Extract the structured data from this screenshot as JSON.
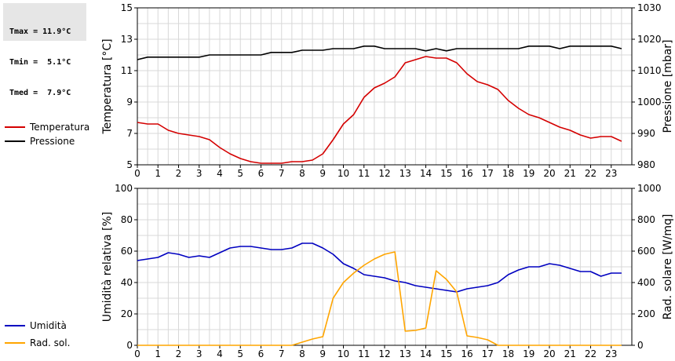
{
  "stats": {
    "tmax": "Tmax = 11.9°C",
    "tmin": "Tmin =  5.1°C",
    "tmed": "Tmed =  7.9°C"
  },
  "colors": {
    "temperature": "#d40000",
    "pressure": "#000000",
    "humidity": "#0000c0",
    "solar": "#ffa500",
    "grid": "#d8d8d8"
  },
  "chart_data": [
    {
      "type": "line",
      "x_ticks": [
        "0",
        "1",
        "2",
        "3",
        "4",
        "5",
        "6",
        "7",
        "8",
        "9",
        "10",
        "11",
        "12",
        "13",
        "14",
        "15",
        "16",
        "17",
        "18",
        "19",
        "20",
        "21",
        "22",
        "23"
      ],
      "xlim": [
        0,
        24
      ],
      "ylabel": "Temperatura [°C]",
      "ylim": [
        5,
        15
      ],
      "y_ticks": [
        "5",
        "7",
        "9",
        "11",
        "13",
        "15"
      ],
      "y2label": "Pressione [mbar]",
      "y2lim": [
        980,
        1030
      ],
      "y2_ticks": [
        "980",
        "990",
        "1000",
        "1010",
        "1020",
        "1030"
      ],
      "grid": true,
      "legend_placement": "left",
      "series": [
        {
          "name": "Temperatura",
          "axis": "left",
          "x": [
            0,
            0.5,
            1,
            1.5,
            2,
            2.5,
            3,
            3.5,
            4,
            4.5,
            5,
            5.5,
            6,
            6.5,
            7,
            7.5,
            8,
            8.5,
            9,
            9.5,
            10,
            10.5,
            11,
            11.5,
            12,
            12.5,
            13,
            13.5,
            14,
            14.5,
            15,
            15.5,
            16,
            16.5,
            17,
            17.5,
            18,
            18.5,
            19,
            19.5,
            20,
            20.5,
            21,
            21.5,
            22,
            22.5,
            23,
            23.5
          ],
          "values": [
            7.7,
            7.6,
            7.6,
            7.2,
            7.0,
            6.9,
            6.8,
            6.6,
            6.1,
            5.7,
            5.4,
            5.2,
            5.1,
            5.1,
            5.1,
            5.2,
            5.2,
            5.3,
            5.7,
            6.6,
            7.6,
            8.2,
            9.3,
            9.9,
            10.2,
            10.6,
            11.5,
            11.7,
            11.9,
            11.8,
            11.8,
            11.5,
            10.8,
            10.3,
            10.1,
            9.8,
            9.1,
            8.6,
            8.2,
            8.0,
            7.7,
            7.4,
            7.2,
            6.9,
            6.7,
            6.8,
            6.8,
            6.5
          ]
        },
        {
          "name": "Pressione",
          "axis": "right",
          "x": [
            0,
            0.5,
            1,
            1.5,
            2,
            2.5,
            3,
            3.5,
            4,
            4.5,
            5,
            5.5,
            6,
            6.5,
            7,
            7.5,
            8,
            8.5,
            9,
            9.5,
            10,
            10.5,
            11,
            11.5,
            12,
            12.5,
            13,
            13.5,
            14,
            14.5,
            15,
            15.5,
            16,
            16.5,
            17,
            17.5,
            18,
            18.5,
            19,
            19.5,
            20,
            20.5,
            21,
            21.5,
            22,
            22.5,
            23,
            23.5
          ],
          "values": [
            1013.5,
            1014.3,
            1014.3,
            1014.3,
            1014.3,
            1014.3,
            1014.3,
            1015.0,
            1015.0,
            1015.0,
            1015.0,
            1015.0,
            1015.0,
            1015.8,
            1015.8,
            1015.8,
            1016.5,
            1016.5,
            1016.5,
            1017.0,
            1017.0,
            1017.0,
            1017.8,
            1017.8,
            1017.0,
            1017.0,
            1017.0,
            1017.0,
            1016.3,
            1017.0,
            1016.3,
            1017.0,
            1017.0,
            1017.0,
            1017.0,
            1017.0,
            1017.0,
            1017.0,
            1017.8,
            1017.8,
            1017.8,
            1017.0,
            1017.8,
            1017.8,
            1017.8,
            1017.8,
            1017.8,
            1017.0
          ]
        }
      ]
    },
    {
      "type": "line",
      "x_ticks": [
        "0",
        "1",
        "2",
        "3",
        "4",
        "5",
        "6",
        "7",
        "8",
        "9",
        "10",
        "11",
        "12",
        "13",
        "14",
        "15",
        "16",
        "17",
        "18",
        "19",
        "20",
        "21",
        "22",
        "23"
      ],
      "xlim": [
        0,
        24
      ],
      "ylabel": "Umidità relativa [%]",
      "ylim": [
        0,
        100
      ],
      "y_ticks": [
        "0",
        "20",
        "40",
        "60",
        "80",
        "100"
      ],
      "y2label": "Rad. solare [W/mq]",
      "y2lim": [
        0,
        1000
      ],
      "y2_ticks": [
        "0",
        "200",
        "400",
        "600",
        "800",
        "1000"
      ],
      "grid": true,
      "legend_placement": "left",
      "series": [
        {
          "name": "Umidità",
          "axis": "left",
          "x": [
            0,
            0.5,
            1,
            1.5,
            2,
            2.5,
            3,
            3.5,
            4,
            4.5,
            5,
            5.5,
            6,
            6.5,
            7,
            7.5,
            8,
            8.5,
            9,
            9.5,
            10,
            10.5,
            11,
            11.5,
            12,
            12.5,
            13,
            13.5,
            14,
            14.5,
            15,
            15.5,
            16,
            16.5,
            17,
            17.5,
            18,
            18.5,
            19,
            19.5,
            20,
            20.5,
            21,
            21.5,
            22,
            22.5,
            23,
            23.5
          ],
          "values": [
            54,
            55,
            56,
            59,
            58,
            56,
            57,
            56,
            59,
            62,
            63,
            63,
            62,
            61,
            61,
            62,
            65,
            65,
            62,
            58,
            52,
            49,
            45,
            44,
            43,
            41,
            40,
            38,
            37,
            36,
            35,
            34,
            36,
            37,
            38,
            40,
            45,
            48,
            50,
            50,
            52,
            51,
            49,
            47,
            47,
            44,
            46,
            46
          ]
        },
        {
          "name": "Rad. sol.",
          "axis": "right",
          "x": [
            0,
            1,
            2,
            3,
            4,
            5,
            6,
            7,
            7.5,
            8,
            8.5,
            9,
            9.5,
            10,
            10.5,
            11,
            11.5,
            12,
            12.5,
            13,
            13.5,
            14,
            14.5,
            15,
            15.5,
            16,
            16.5,
            17,
            17.5,
            18,
            19,
            20,
            21,
            22,
            23,
            23.5
          ],
          "values": [
            0,
            0,
            0,
            0,
            0,
            0,
            0,
            0,
            0,
            20,
            40,
            55,
            300,
            400,
            460,
            510,
            550,
            580,
            595,
            90,
            95,
            110,
            475,
            420,
            340,
            60,
            50,
            35,
            0,
            0,
            0,
            0,
            0,
            0,
            0,
            0
          ]
        }
      ]
    }
  ]
}
